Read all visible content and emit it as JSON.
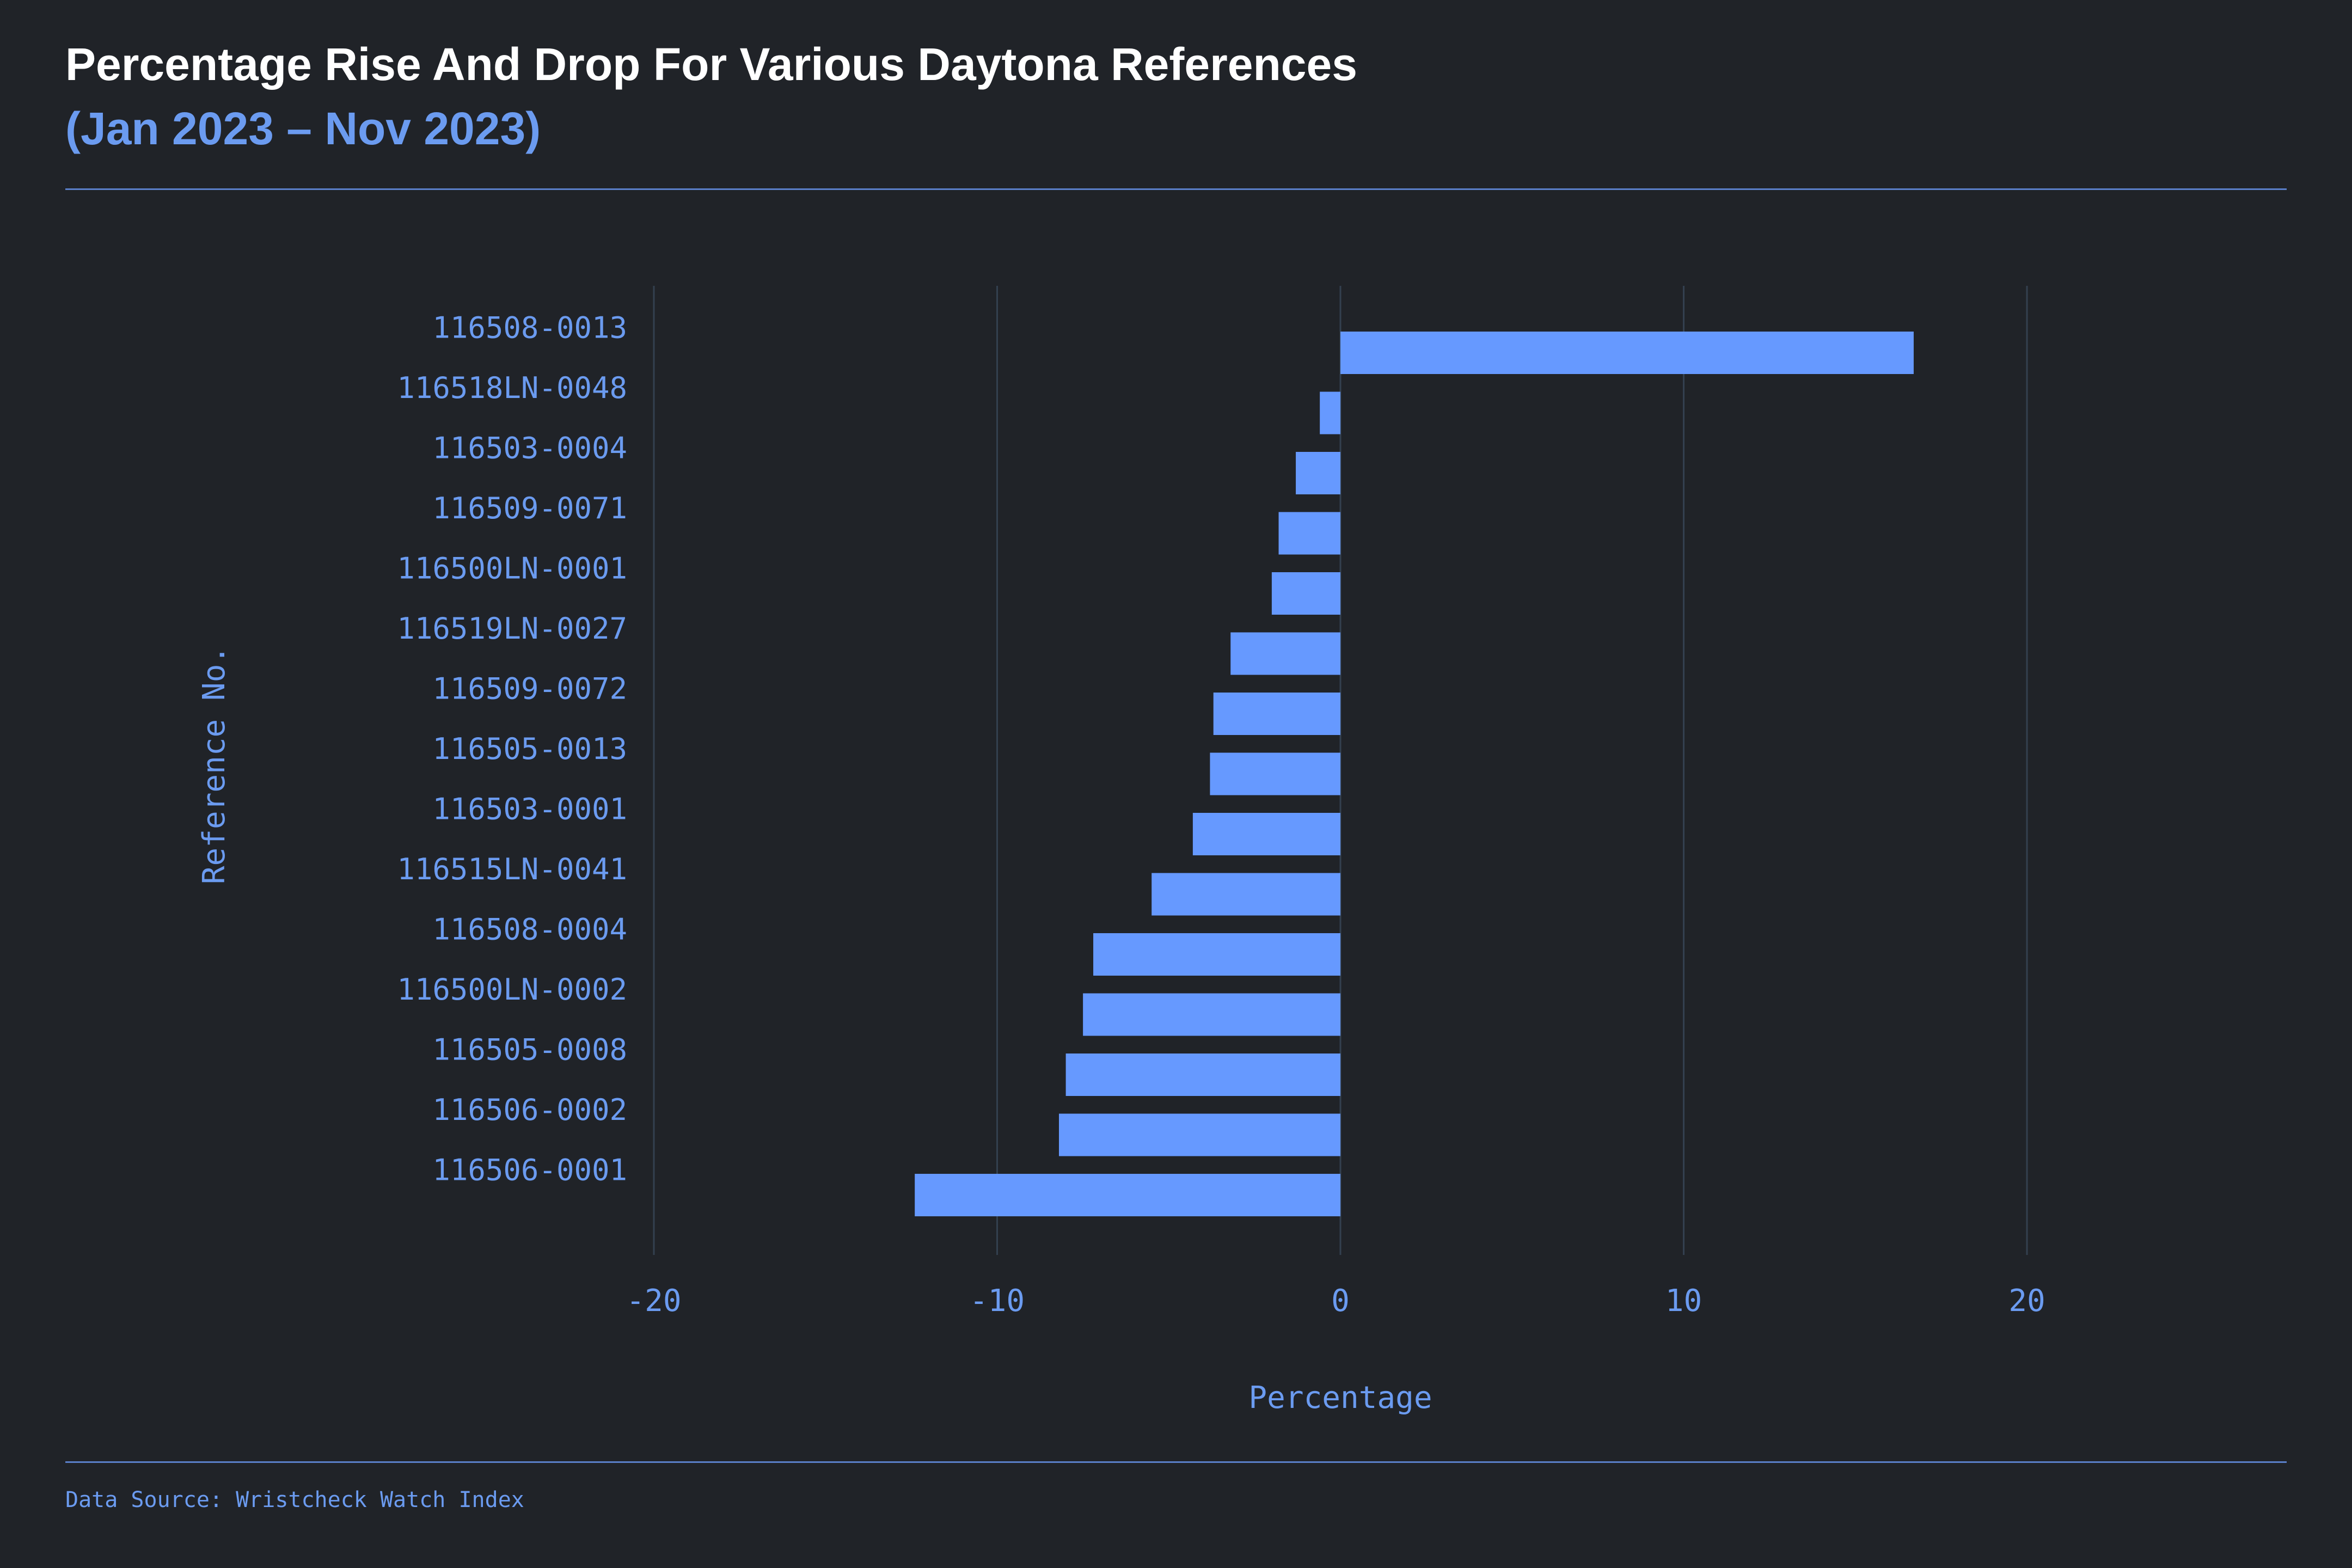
{
  "header": {
    "title": "Percentage Rise And Drop For Various Daytona References",
    "subtitle": "(Jan 2023 – Nov 2023)"
  },
  "footer": {
    "source": "Data Source: Wristcheck Watch Index"
  },
  "colors": {
    "background": "#202328",
    "bar": "#6699ff",
    "text_accent": "#6b9bf0",
    "grid": "#33404f"
  },
  "chart_data": {
    "type": "bar",
    "orientation": "horizontal",
    "xlabel": "Percentage",
    "ylabel": "Reference No.",
    "xlim": [
      -25,
      27.5
    ],
    "xticks": [
      -20,
      -10,
      0,
      10,
      20
    ],
    "grid": true,
    "categories": [
      "116508-0013",
      "116518LN-0048",
      "116503-0004",
      "116509-0071",
      "116500LN-0001",
      "116519LN-0027",
      "116509-0072",
      "116505-0013",
      "116503-0001",
      "116515LN-0041",
      "116508-0004",
      "116500LN-0002",
      "116505-0008",
      "116506-0002",
      "116506-0001"
    ],
    "values": [
      16.7,
      -0.6,
      -1.3,
      -1.8,
      -2.0,
      -3.2,
      -3.7,
      -3.8,
      -4.3,
      -5.5,
      -7.2,
      -7.5,
      -8.0,
      -8.2,
      -12.4
    ]
  }
}
